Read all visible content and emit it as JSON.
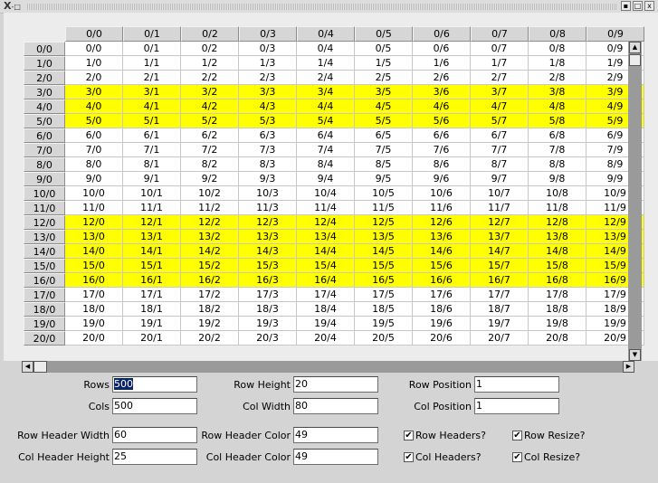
{
  "window": {
    "title": "",
    "logo_text": "X",
    "logo_sub": "-□"
  },
  "title_buttons": {
    "minimize": "▪",
    "maximize": "□",
    "close": "x"
  },
  "table": {
    "col_headers": [
      "0/0",
      "0/1",
      "0/2",
      "0/3",
      "0/4",
      "0/5",
      "0/6",
      "0/7",
      "0/8",
      "0/9"
    ],
    "rows": [
      {
        "h": "0/0",
        "c": [
          "0/0",
          "0/1",
          "0/2",
          "0/3",
          "0/4",
          "0/5",
          "0/6",
          "0/7",
          "0/8",
          "0/9"
        ],
        "hl": false
      },
      {
        "h": "1/0",
        "c": [
          "1/0",
          "1/1",
          "1/2",
          "1/3",
          "1/4",
          "1/5",
          "1/6",
          "1/7",
          "1/8",
          "1/9"
        ],
        "hl": false
      },
      {
        "h": "2/0",
        "c": [
          "2/0",
          "2/1",
          "2/2",
          "2/3",
          "2/4",
          "2/5",
          "2/6",
          "2/7",
          "2/8",
          "2/9"
        ],
        "hl": false
      },
      {
        "h": "3/0",
        "c": [
          "3/0",
          "3/1",
          "3/2",
          "3/3",
          "3/4",
          "3/5",
          "3/6",
          "3/7",
          "3/8",
          "3/9"
        ],
        "hl": true
      },
      {
        "h": "4/0",
        "c": [
          "4/0",
          "4/1",
          "4/2",
          "4/3",
          "4/4",
          "4/5",
          "4/6",
          "4/7",
          "4/8",
          "4/9"
        ],
        "hl": true
      },
      {
        "h": "5/0",
        "c": [
          "5/0",
          "5/1",
          "5/2",
          "5/3",
          "5/4",
          "5/5",
          "5/6",
          "5/7",
          "5/8",
          "5/9"
        ],
        "hl": true
      },
      {
        "h": "6/0",
        "c": [
          "6/0",
          "6/1",
          "6/2",
          "6/3",
          "6/4",
          "6/5",
          "6/6",
          "6/7",
          "6/8",
          "6/9"
        ],
        "hl": false
      },
      {
        "h": "7/0",
        "c": [
          "7/0",
          "7/1",
          "7/2",
          "7/3",
          "7/4",
          "7/5",
          "7/6",
          "7/7",
          "7/8",
          "7/9"
        ],
        "hl": false
      },
      {
        "h": "8/0",
        "c": [
          "8/0",
          "8/1",
          "8/2",
          "8/3",
          "8/4",
          "8/5",
          "8/6",
          "8/7",
          "8/8",
          "8/9"
        ],
        "hl": false
      },
      {
        "h": "9/0",
        "c": [
          "9/0",
          "9/1",
          "9/2",
          "9/3",
          "9/4",
          "9/5",
          "9/6",
          "9/7",
          "9/8",
          "9/9"
        ],
        "hl": false
      },
      {
        "h": "10/0",
        "c": [
          "10/0",
          "10/1",
          "10/2",
          "10/3",
          "10/4",
          "10/5",
          "10/6",
          "10/7",
          "10/8",
          "10/9"
        ],
        "hl": false
      },
      {
        "h": "11/0",
        "c": [
          "11/0",
          "11/1",
          "11/2",
          "11/3",
          "11/4",
          "11/5",
          "11/6",
          "11/7",
          "11/8",
          "11/9"
        ],
        "hl": false
      },
      {
        "h": "12/0",
        "c": [
          "12/0",
          "12/1",
          "12/2",
          "12/3",
          "12/4",
          "12/5",
          "12/6",
          "12/7",
          "12/8",
          "12/9"
        ],
        "hl": true
      },
      {
        "h": "13/0",
        "c": [
          "13/0",
          "13/1",
          "13/2",
          "13/3",
          "13/4",
          "13/5",
          "13/6",
          "13/7",
          "13/8",
          "13/9"
        ],
        "hl": true
      },
      {
        "h": "14/0",
        "c": [
          "14/0",
          "14/1",
          "14/2",
          "14/3",
          "14/4",
          "14/5",
          "14/6",
          "14/7",
          "14/8",
          "14/9"
        ],
        "hl": true
      },
      {
        "h": "15/0",
        "c": [
          "15/0",
          "15/1",
          "15/2",
          "15/3",
          "15/4",
          "15/5",
          "15/6",
          "15/7",
          "15/8",
          "15/9"
        ],
        "hl": true
      },
      {
        "h": "16/0",
        "c": [
          "16/0",
          "16/1",
          "16/2",
          "16/3",
          "16/4",
          "16/5",
          "16/6",
          "16/7",
          "16/8",
          "16/9"
        ],
        "hl": true
      },
      {
        "h": "17/0",
        "c": [
          "17/0",
          "17/1",
          "17/2",
          "17/3",
          "17/4",
          "17/5",
          "17/6",
          "17/7",
          "17/8",
          "17/9"
        ],
        "hl": false
      },
      {
        "h": "18/0",
        "c": [
          "18/0",
          "18/1",
          "18/2",
          "18/3",
          "18/4",
          "18/5",
          "18/6",
          "18/7",
          "18/8",
          "18/9"
        ],
        "hl": false
      },
      {
        "h": "19/0",
        "c": [
          "19/0",
          "19/1",
          "19/2",
          "19/3",
          "19/4",
          "19/5",
          "19/6",
          "19/7",
          "19/8",
          "19/9"
        ],
        "hl": false
      },
      {
        "h": "20/0",
        "c": [
          "20/0",
          "20/1",
          "20/2",
          "20/3",
          "20/4",
          "20/5",
          "20/6",
          "20/7",
          "20/8",
          "20/9"
        ],
        "hl": false
      }
    ],
    "highlight_color": "#ffff00"
  },
  "scroll": {
    "up": "▲",
    "down": "▼",
    "left": "◀",
    "right": "▶"
  },
  "controls": {
    "rows": {
      "label": "Rows",
      "value": "500"
    },
    "cols": {
      "label": "Cols",
      "value": "500"
    },
    "row_height": {
      "label": "Row Height",
      "value": "20"
    },
    "col_width": {
      "label": "Col Width",
      "value": "80"
    },
    "row_position": {
      "label": "Row Position",
      "value": "1"
    },
    "col_position": {
      "label": "Col Position",
      "value": "1"
    },
    "row_header_width": {
      "label": "Row Header Width",
      "value": "60"
    },
    "col_header_height": {
      "label": "Col Header Height",
      "value": "25"
    },
    "row_header_color": {
      "label": "Row Header Color",
      "value": "49"
    },
    "col_header_color": {
      "label": "Col Header Color",
      "value": "49"
    },
    "row_headers": {
      "label": "Row Headers?",
      "checked": true
    },
    "col_headers": {
      "label": "Col Headers?",
      "checked": true
    },
    "row_resize": {
      "label": "Row Resize?",
      "checked": true
    },
    "col_resize": {
      "label": "Col Resize?",
      "checked": true
    },
    "check_mark": "✔"
  }
}
